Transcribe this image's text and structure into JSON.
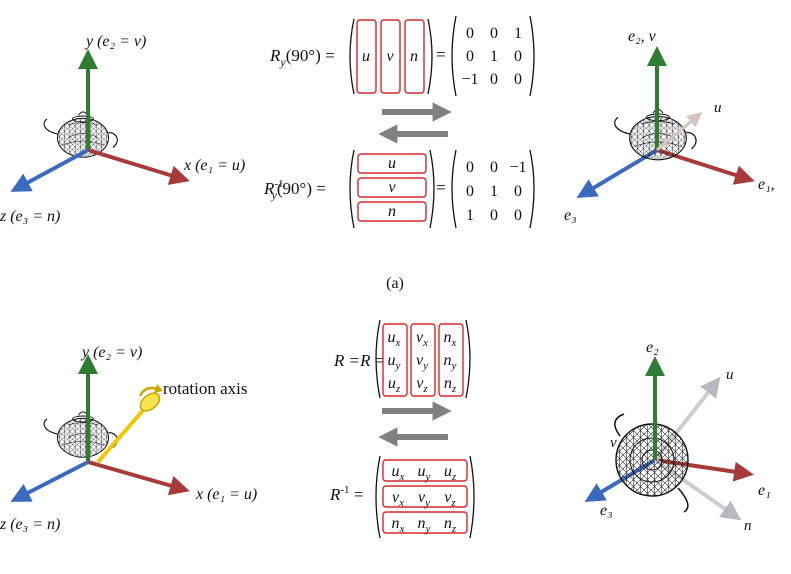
{
  "panel_a": {
    "left_axes": {
      "y_label": "y (e₂ = v)",
      "x_label": "x (e₁ = u)",
      "z_label": "z (e₃ = n)"
    },
    "rotation_label": "R_y(90°) =",
    "rotation_columns": [
      "u",
      "v",
      "n"
    ],
    "rotation_matrix": [
      [
        "0",
        "0",
        "1"
      ],
      [
        "0",
        "1",
        "0"
      ],
      [
        "−1",
        "0",
        "0"
      ]
    ],
    "inverse_label": "R_y^-1(90°) =",
    "inverse_rows": [
      "u",
      "v",
      "n"
    ],
    "inverse_matrix": [
      [
        "0",
        "0",
        "−1"
      ],
      [
        "0",
        "1",
        "0"
      ],
      [
        "1",
        "0",
        "0"
      ]
    ],
    "right_axes": {
      "top_label": "e₂, v",
      "u_label": "u",
      "e1_label": "e₁,",
      "e3_label": "e₃"
    },
    "caption": "(a)"
  },
  "panel_b": {
    "left_axes": {
      "y_label": "y (e₂ = v)",
      "x_label": "x (e₁ = u)",
      "z_label": "z (e₃ = n)",
      "rotation_axis_label": "rotation axis"
    },
    "rotation_label": "R =",
    "rotation_matrix": [
      [
        "u_x",
        "v_x",
        "n_x"
      ],
      [
        "u_y",
        "v_y",
        "n_y"
      ],
      [
        "u_z",
        "v_z",
        "n_z"
      ]
    ],
    "inverse_label": "R^-1 =",
    "inverse_matrix": [
      [
        "u_x",
        "u_y",
        "u_z"
      ],
      [
        "v_x",
        "v_y",
        "v_z"
      ],
      [
        "n_x",
        "n_y",
        "n_z"
      ]
    ],
    "right_axes": {
      "e2_label": "e₂",
      "u_label": "u",
      "v_label": "v",
      "e1_label": "e₁",
      "e3_label": "e₃",
      "n_label": "n"
    }
  },
  "colors": {
    "y_axis": "#2e7d32",
    "x_axis": "#a83a3a",
    "z_axis": "#3a6bc0",
    "matrix_box": "#d62828",
    "arrow": "#808080",
    "rotation_axis": "#f2c500"
  }
}
